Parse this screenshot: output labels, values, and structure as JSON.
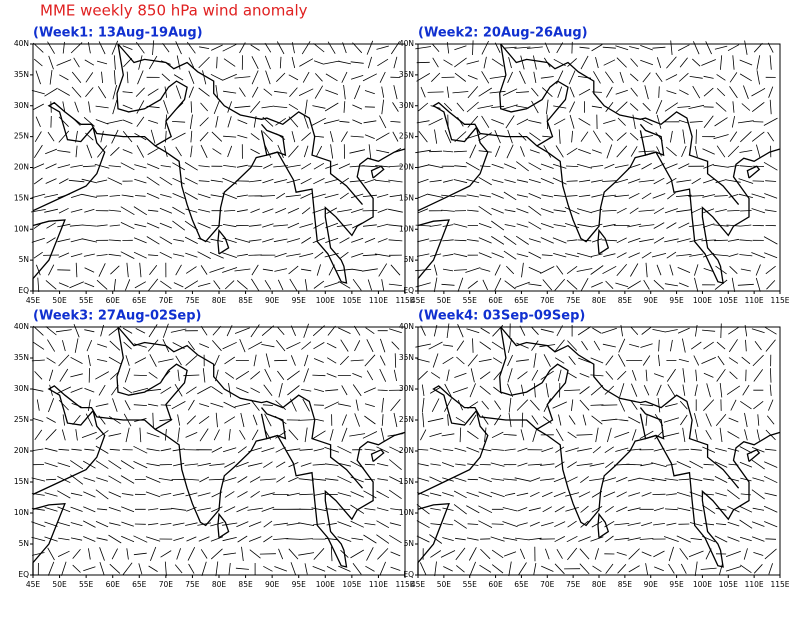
{
  "title": "MME weekly 850 hPa wind anomaly",
  "x_labels": [
    "45E",
    "50E",
    "55E",
    "60E",
    "65E",
    "70E",
    "75E",
    "80E",
    "85E",
    "90E",
    "95E",
    "100E",
    "105E",
    "110E",
    "115E"
  ],
  "y_labels": [
    "EQ",
    "5N",
    "10N",
    "15N",
    "20N",
    "25N",
    "30N",
    "35N",
    "40N"
  ],
  "panels": [
    {
      "title": "(Week1: 13Aug-19Aug)"
    },
    {
      "title": "(Week2: 20Aug-26Aug)"
    },
    {
      "title": "(Week3: 27Aug-02Sep)"
    },
    {
      "title": "(Week4: 03Sep-09Sep)"
    }
  ]
}
